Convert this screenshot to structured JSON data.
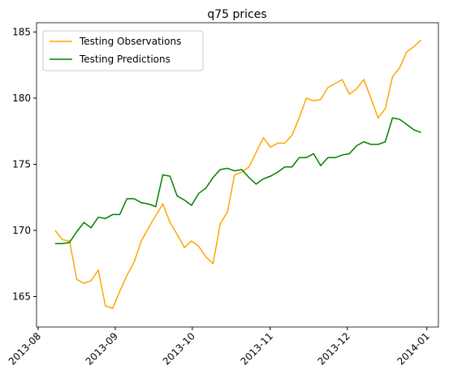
{
  "chart_data": {
    "type": "line",
    "title": "q75 prices",
    "categories": [
      null,
      null,
      null,
      null,
      null,
      null,
      null,
      null,
      null,
      null,
      null,
      null,
      null,
      null,
      null,
      null,
      null,
      null,
      null,
      null,
      null,
      null,
      null,
      null,
      null,
      null,
      null,
      null,
      null,
      null,
      null,
      null,
      null,
      null,
      null,
      null,
      null,
      null,
      null,
      null,
      null,
      null,
      null,
      null,
      null,
      null,
      null,
      null,
      null,
      null,
      null,
      null
    ],
    "series": [
      {
        "name": "Testing Observations",
        "color": "#ffa500",
        "values": [
          170.0,
          169.3,
          169.2,
          166.3,
          166.0,
          166.2,
          167.0,
          164.3,
          164.1,
          165.4,
          166.6,
          167.6,
          169.2,
          170.2,
          171.1,
          172.0,
          170.6,
          169.7,
          168.7,
          169.2,
          168.8,
          168.0,
          167.5,
          170.5,
          171.4,
          174.2,
          174.4,
          174.8,
          175.9,
          177.0,
          176.3,
          176.6,
          176.6,
          177.2,
          178.5,
          180.0,
          179.8,
          179.9,
          180.8,
          181.1,
          181.4,
          180.3,
          180.7,
          181.4,
          180.0,
          178.5,
          179.2,
          181.6,
          182.3,
          183.5,
          183.9,
          184.4
        ]
      },
      {
        "name": "Testing Predictions",
        "color": "#008000",
        "values": [
          169.0,
          169.0,
          169.1,
          169.9,
          170.6,
          170.2,
          171.0,
          170.9,
          171.2,
          171.2,
          172.4,
          172.4,
          172.1,
          172.0,
          171.8,
          174.2,
          174.1,
          172.6,
          172.3,
          171.9,
          172.8,
          173.2,
          174.0,
          174.6,
          174.7,
          174.5,
          174.6,
          174.0,
          173.5,
          173.9,
          174.1,
          174.4,
          174.8,
          174.8,
          175.5,
          175.5,
          175.8,
          174.9,
          175.5,
          175.5,
          175.7,
          175.8,
          176.4,
          176.7,
          176.5,
          176.5,
          176.7,
          178.5,
          178.4,
          178.0,
          177.6,
          177.4
        ]
      }
    ],
    "xlim": [
      -2.6,
      53.4
    ],
    "xticks": [
      {
        "value": -2.37,
        "label": "2013-08"
      },
      {
        "value": 8.37,
        "label": "2013-09"
      },
      {
        "value": 19.11,
        "label": "2013-10"
      },
      {
        "value": 29.97,
        "label": "2013-11"
      },
      {
        "value": 40.71,
        "label": "2013-12"
      },
      {
        "value": 51.79,
        "label": "2014-01"
      }
    ],
    "ylim": [
      162.7,
      185.7
    ],
    "yticks": [
      165,
      170,
      175,
      180,
      185
    ],
    "grid": false,
    "legend": "upper left"
  }
}
